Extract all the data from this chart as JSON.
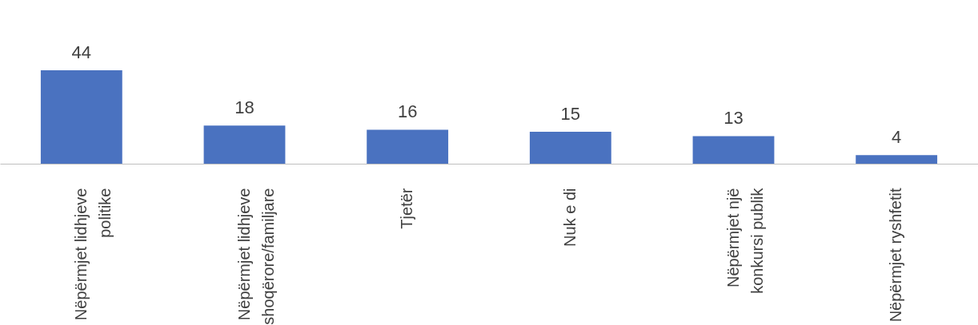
{
  "chart_data": {
    "type": "bar",
    "categories": [
      "Nëpërmjet lidhjeve politike",
      "Nëpërmjet lidhjeve shoqërore/familjare",
      "Tjetër",
      "Nuk e di",
      "Nëpërmjet një konkursi publik",
      "Nëpërmjet ryshfetit"
    ],
    "values": [
      44,
      18,
      16,
      15,
      13,
      4
    ],
    "color": "#4a72c0",
    "data_labels": true
  }
}
